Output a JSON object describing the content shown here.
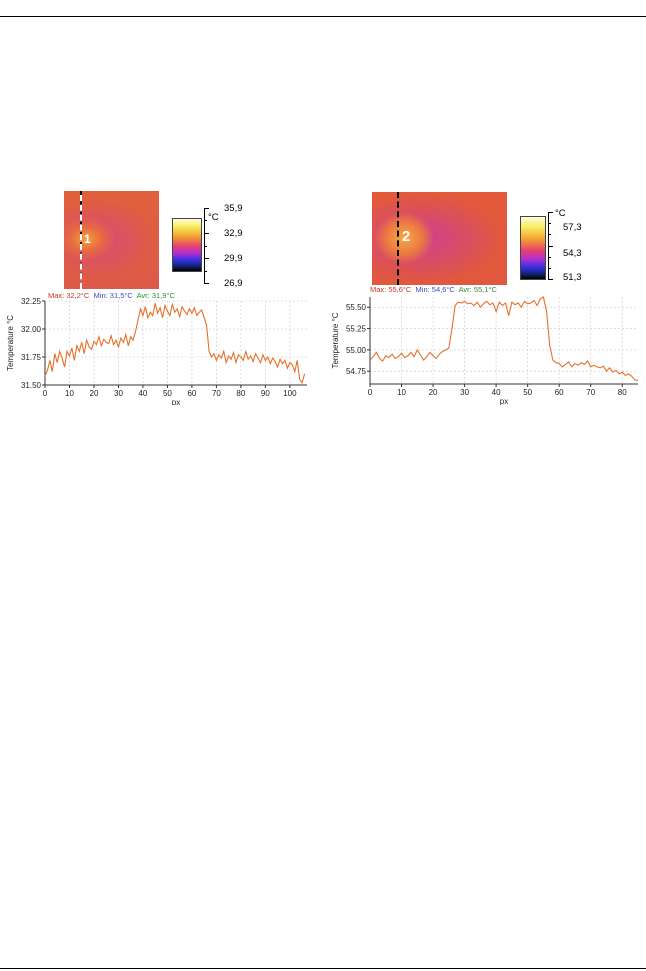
{
  "panels": [
    {
      "spot_label": "1",
      "scale": {
        "unit": "°C",
        "labels": [
          "35,9",
          "32,9",
          "29,9",
          "26,9"
        ]
      },
      "stats": {
        "max": "Max: 32,2°C",
        "min": "Min: 31,5°C",
        "avr": "Avr: 31,9°C"
      },
      "colors": {
        "line": "#e8702a",
        "max": "#c0392b",
        "min": "#3b4cc0",
        "avr": "#2e8b3a"
      }
    },
    {
      "spot_label": "2",
      "scale": {
        "unit": "°C",
        "labels": [
          "57,3",
          "54,3",
          "51,3"
        ]
      },
      "stats": {
        "max": "Max: 55,6°C",
        "min": "Min: 54,6°C",
        "avr": "Avr: 55,1°C"
      },
      "colors": {
        "line": "#e8702a",
        "max": "#c0392b",
        "min": "#3b4cc0",
        "avr": "#2e8b3a"
      }
    }
  ],
  "chart_data": [
    {
      "type": "line",
      "xlabel": "px",
      "ylabel": "Temperature °C",
      "xlim": [
        0,
        107
      ],
      "ylim": [
        31.5,
        32.25
      ],
      "xticks": [
        "0",
        "10",
        "20",
        "30",
        "40",
        "50",
        "60",
        "70",
        "80",
        "90",
        "100"
      ],
      "yticks": [
        "31.50",
        "31.75",
        "32.00",
        "32.25"
      ],
      "grid": true,
      "series": [
        {
          "x": [
            0,
            1,
            2,
            3,
            4,
            5,
            6,
            7,
            8,
            9,
            10,
            11,
            12,
            13,
            14,
            15,
            16,
            17,
            18,
            19,
            20,
            21,
            22,
            23,
            24,
            25,
            26,
            27,
            28,
            29,
            30,
            31,
            32,
            33,
            34,
            35,
            36,
            37,
            38,
            39,
            40,
            41,
            42,
            43,
            44,
            45,
            46,
            47,
            48,
            49,
            50,
            51,
            52,
            53,
            54,
            55,
            56,
            57,
            58,
            59,
            60,
            61,
            62,
            63,
            64,
            65,
            66,
            67,
            68,
            69,
            70,
            71,
            72,
            73,
            74,
            75,
            76,
            77,
            78,
            79,
            80,
            81,
            82,
            83,
            84,
            85,
            86,
            87,
            88,
            89,
            90,
            91,
            92,
            93,
            94,
            95,
            96,
            97,
            98,
            99,
            100,
            101,
            102,
            103,
            104,
            105,
            106
          ],
          "values": [
            31.58,
            31.63,
            31.72,
            31.62,
            31.78,
            31.7,
            31.8,
            31.74,
            31.66,
            31.8,
            31.76,
            31.83,
            31.72,
            31.85,
            31.8,
            31.88,
            31.78,
            31.9,
            31.84,
            31.82,
            31.89,
            31.86,
            31.93,
            31.85,
            31.91,
            31.88,
            31.87,
            31.94,
            31.86,
            31.9,
            31.84,
            31.92,
            31.88,
            31.95,
            31.85,
            31.93,
            31.9,
            31.98,
            32.08,
            32.18,
            32.12,
            32.2,
            32.1,
            32.15,
            32.12,
            32.23,
            32.14,
            32.19,
            32.1,
            32.21,
            32.16,
            32.12,
            32.22,
            32.15,
            32.18,
            32.11,
            32.2,
            32.16,
            32.13,
            32.18,
            32.14,
            32.19,
            32.12,
            32.15,
            32.17,
            32.1,
            32.03,
            31.8,
            31.75,
            31.78,
            31.72,
            31.77,
            31.74,
            31.8,
            31.7,
            31.76,
            31.73,
            31.79,
            31.7,
            31.77,
            31.75,
            31.72,
            31.8,
            31.73,
            31.76,
            31.71,
            31.78,
            31.74,
            31.7,
            31.77,
            31.72,
            31.75,
            31.69,
            31.74,
            31.71,
            31.66,
            31.73,
            31.69,
            31.72,
            31.65,
            31.7,
            31.68,
            31.62,
            31.72,
            31.55,
            31.52,
            31.6
          ]
        }
      ]
    },
    {
      "type": "line",
      "xlabel": "px",
      "ylabel": "Temperature °C",
      "xlim": [
        0,
        85
      ],
      "ylim": [
        54.6,
        55.62
      ],
      "xticks": [
        "0",
        "10",
        "20",
        "30",
        "40",
        "50",
        "60",
        "70",
        "80"
      ],
      "yticks": [
        "54.75",
        "55.00",
        "55.25",
        "55.50"
      ],
      "grid": true,
      "series": [
        {
          "x": [
            0,
            1,
            2,
            3,
            4,
            5,
            6,
            7,
            8,
            9,
            10,
            11,
            12,
            13,
            14,
            15,
            16,
            17,
            18,
            19,
            20,
            21,
            22,
            23,
            24,
            25,
            26,
            27,
            28,
            29,
            30,
            31,
            32,
            33,
            34,
            35,
            36,
            37,
            38,
            39,
            40,
            41,
            42,
            43,
            44,
            45,
            46,
            47,
            48,
            49,
            50,
            51,
            52,
            53,
            54,
            55,
            56,
            57,
            58,
            59,
            60,
            61,
            62,
            63,
            64,
            65,
            66,
            67,
            68,
            69,
            70,
            71,
            72,
            73,
            74,
            75,
            76,
            77,
            78,
            79,
            80,
            81,
            82,
            83,
            84,
            85
          ],
          "values": [
            54.88,
            54.92,
            54.97,
            54.9,
            54.87,
            54.93,
            54.91,
            54.95,
            54.9,
            54.92,
            54.96,
            54.91,
            54.93,
            54.97,
            54.92,
            55.0,
            54.94,
            54.88,
            54.92,
            54.97,
            54.93,
            54.9,
            54.95,
            54.98,
            55.0,
            55.02,
            55.25,
            55.52,
            55.56,
            55.55,
            55.57,
            55.54,
            55.55,
            55.52,
            55.56,
            55.5,
            55.54,
            55.57,
            55.53,
            55.55,
            55.45,
            55.56,
            55.52,
            55.55,
            55.4,
            55.56,
            55.53,
            55.55,
            55.5,
            55.57,
            55.54,
            55.55,
            55.58,
            55.52,
            55.6,
            55.62,
            55.45,
            55.05,
            54.88,
            54.85,
            54.84,
            54.8,
            54.83,
            54.86,
            54.8,
            54.84,
            54.82,
            54.85,
            54.83,
            54.87,
            54.8,
            54.82,
            54.8,
            54.79,
            54.81,
            54.75,
            54.79,
            54.74,
            54.76,
            54.72,
            54.74,
            54.7,
            54.72,
            54.69,
            54.65,
            54.64
          ]
        }
      ]
    }
  ]
}
